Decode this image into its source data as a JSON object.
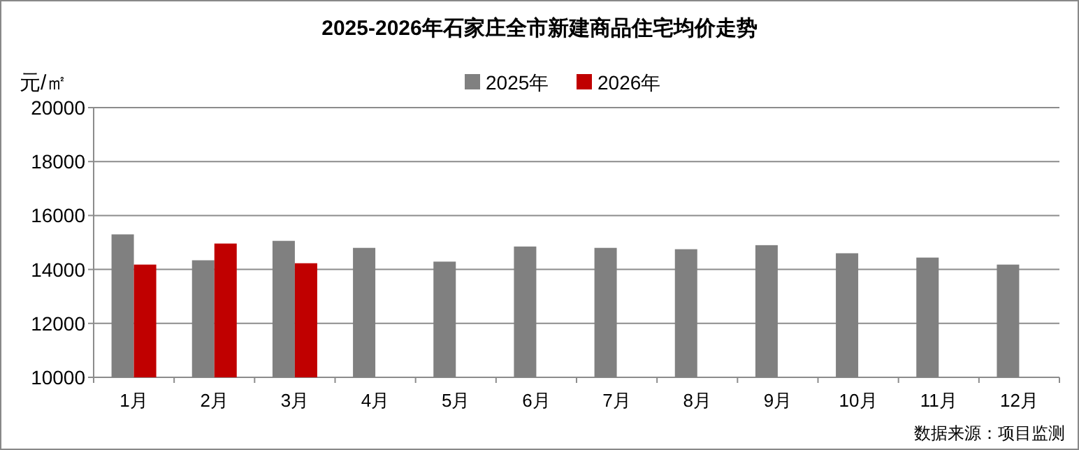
{
  "chart_data": {
    "type": "bar",
    "title": "2025-2026年石家庄全市新建商品住宅均价走势",
    "ylabel": "元/㎡",
    "categories": [
      "1月",
      "2月",
      "3月",
      "4月",
      "5月",
      "6月",
      "7月",
      "8月",
      "9月",
      "10月",
      "11月",
      "12月"
    ],
    "series": [
      {
        "name": "2025年",
        "color": "#808080",
        "values": [
          15300,
          14340,
          15060,
          14800,
          14290,
          14850,
          14800,
          14750,
          14900,
          14600,
          14440,
          14180
        ]
      },
      {
        "name": "2026年",
        "color": "#c00000",
        "values": [
          14180,
          14960,
          14230,
          null,
          null,
          null,
          null,
          null,
          null,
          null,
          null,
          null
        ]
      }
    ],
    "ylim": [
      10000,
      20000
    ],
    "yticks": [
      10000,
      12000,
      14000,
      16000,
      18000,
      20000
    ],
    "grid": "y",
    "legend": "top",
    "annotations": [
      "数据来源：项目监测"
    ]
  }
}
